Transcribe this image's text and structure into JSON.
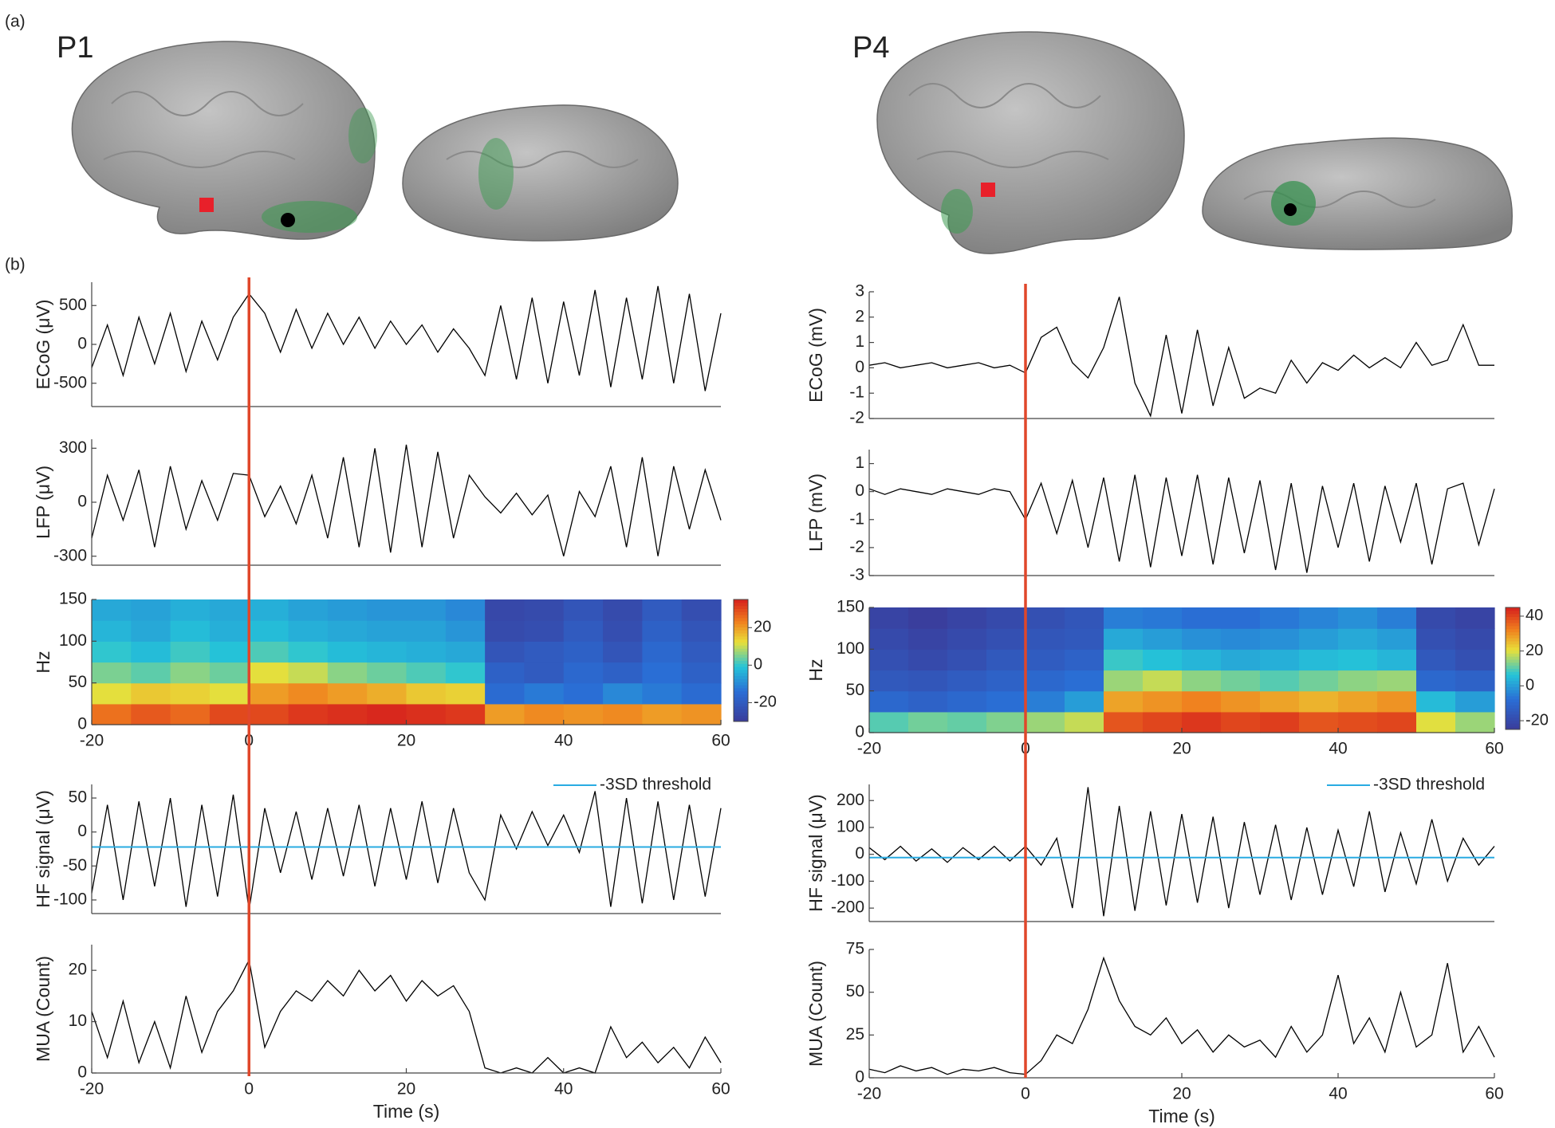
{
  "figure": {
    "panel_a": "(a)",
    "panel_b": "(b)",
    "subjects": [
      "P1",
      "P4"
    ]
  },
  "onset": {
    "x": 0,
    "color": "#e0472a"
  },
  "chart_data": [
    {
      "type": "line",
      "ylabel": "ECoG (μV)",
      "xlim": [
        -20,
        60
      ],
      "ylim": [
        -800,
        800
      ],
      "yticks": [
        -500,
        0,
        500
      ],
      "color": "#000000",
      "x": [
        -20,
        -18,
        -16,
        -14,
        -12,
        -10,
        -8,
        -6,
        -4,
        -2,
        0,
        2,
        4,
        6,
        8,
        10,
        12,
        14,
        16,
        18,
        20,
        22,
        24,
        26,
        28,
        30,
        32,
        34,
        36,
        38,
        40,
        42,
        44,
        46,
        48,
        50,
        52,
        54,
        56,
        58,
        60
      ],
      "values": [
        -300,
        250,
        -400,
        350,
        -250,
        400,
        -350,
        300,
        -200,
        350,
        650,
        400,
        -100,
        450,
        -50,
        400,
        0,
        350,
        -50,
        300,
        0,
        250,
        -100,
        200,
        -50,
        -400,
        500,
        -450,
        600,
        -500,
        550,
        -400,
        700,
        -550,
        600,
        -450,
        750,
        -500,
        650,
        -600,
        400
      ]
    },
    {
      "type": "line",
      "ylabel": "LFP (μV)",
      "xlim": [
        -20,
        60
      ],
      "ylim": [
        -350,
        350
      ],
      "yticks": [
        -300,
        0,
        300
      ],
      "color": "#000000",
      "x": [
        -20,
        -18,
        -16,
        -14,
        -12,
        -10,
        -8,
        -6,
        -4,
        -2,
        0,
        2,
        4,
        6,
        8,
        10,
        12,
        14,
        16,
        18,
        20,
        22,
        24,
        26,
        28,
        30,
        32,
        34,
        36,
        38,
        40,
        42,
        44,
        46,
        48,
        50,
        52,
        54,
        56,
        58,
        60
      ],
      "values": [
        -200,
        150,
        -100,
        180,
        -250,
        200,
        -150,
        120,
        -100,
        160,
        150,
        -80,
        90,
        -120,
        150,
        -200,
        250,
        -250,
        300,
        -280,
        320,
        -250,
        280,
        -200,
        150,
        30,
        -60,
        50,
        -70,
        40,
        -300,
        60,
        -80,
        200,
        -250,
        250,
        -300,
        200,
        -150,
        180,
        -100
      ]
    },
    {
      "type": "heatmap",
      "ylabel": "Hz",
      "xlim": [
        -20,
        60
      ],
      "xticks": [
        -20,
        0,
        20,
        40,
        60
      ],
      "ylim": [
        0,
        150
      ],
      "yticks": [
        0,
        50,
        100,
        150
      ],
      "clim": [
        -30,
        35
      ],
      "cticks": [
        -20,
        0,
        20
      ],
      "x": [
        -17.5,
        -12.5,
        -7.5,
        -2.5,
        2.5,
        7.5,
        12.5,
        17.5,
        22.5,
        27.5,
        32.5,
        37.5,
        42.5,
        47.5,
        52.5,
        57.5
      ],
      "y": [
        12.5,
        37.5,
        62.5,
        87.5,
        112.5,
        137.5
      ],
      "z": [
        [
          25,
          28,
          26,
          30,
          30,
          32,
          33,
          34,
          33,
          32,
          20,
          22,
          21,
          22,
          20,
          21
        ],
        [
          12,
          15,
          14,
          12,
          20,
          22,
          20,
          18,
          15,
          14,
          -15,
          -12,
          -14,
          -10,
          -12,
          -15
        ],
        [
          5,
          3,
          6,
          4,
          12,
          10,
          6,
          4,
          2,
          0,
          -18,
          -20,
          -16,
          -18,
          -14,
          -18
        ],
        [
          0,
          -2,
          1,
          -1,
          2,
          0,
          -2,
          -3,
          -4,
          -5,
          -22,
          -20,
          -18,
          -22,
          -16,
          -20
        ],
        [
          -3,
          -5,
          -2,
          -4,
          -2,
          -4,
          -5,
          -6,
          -6,
          -8,
          -25,
          -24,
          -20,
          -24,
          -18,
          -22
        ],
        [
          -5,
          -6,
          -4,
          -5,
          -4,
          -6,
          -7,
          -8,
          -8,
          -10,
          -26,
          -25,
          -22,
          -25,
          -20,
          -24
        ]
      ]
    },
    {
      "type": "line",
      "ylabel": "HF signal (μV)",
      "xlim": [
        -20,
        60
      ],
      "ylim": [
        -120,
        70
      ],
      "yticks": [
        -100,
        -50,
        0,
        50
      ],
      "color": "#000000",
      "threshold": {
        "name": "-3SD threshold",
        "value": -22,
        "color": "#29abe2"
      },
      "x": [
        -20,
        -18,
        -16,
        -14,
        -12,
        -10,
        -8,
        -6,
        -4,
        -2,
        0,
        2,
        4,
        6,
        8,
        10,
        12,
        14,
        16,
        18,
        20,
        22,
        24,
        26,
        28,
        30,
        32,
        34,
        36,
        38,
        40,
        42,
        44,
        46,
        48,
        50,
        52,
        54,
        56,
        58,
        60
      ],
      "values": [
        -90,
        40,
        -100,
        45,
        -80,
        50,
        -110,
        40,
        -95,
        55,
        -115,
        35,
        -60,
        30,
        -70,
        35,
        -65,
        40,
        -80,
        35,
        -70,
        45,
        -75,
        35,
        -60,
        -100,
        25,
        -25,
        30,
        -20,
        25,
        -30,
        60,
        -110,
        50,
        -105,
        45,
        -100,
        40,
        -95,
        35
      ]
    },
    {
      "type": "line",
      "ylabel": "MUA (Count)",
      "xlabel": "Time (s)",
      "xlim": [
        -20,
        60
      ],
      "xticks": [
        -20,
        0,
        20,
        40,
        60
      ],
      "ylim": [
        0,
        25
      ],
      "yticks": [
        0,
        10,
        20
      ],
      "color": "#000000",
      "x": [
        -20,
        -18,
        -16,
        -14,
        -12,
        -10,
        -8,
        -6,
        -4,
        -2,
        0,
        2,
        4,
        6,
        8,
        10,
        12,
        14,
        16,
        18,
        20,
        22,
        24,
        26,
        28,
        30,
        32,
        34,
        36,
        38,
        40,
        42,
        44,
        46,
        48,
        50,
        52,
        54,
        56,
        58,
        60
      ],
      "values": [
        12,
        3,
        14,
        2,
        10,
        1,
        15,
        4,
        12,
        16,
        22,
        5,
        12,
        16,
        14,
        18,
        15,
        20,
        16,
        19,
        14,
        18,
        15,
        17,
        12,
        1,
        0,
        1,
        0,
        3,
        0,
        1,
        0,
        9,
        3,
        6,
        2,
        5,
        1,
        7,
        2
      ]
    },
    {
      "type": "line",
      "ylabel": "ECoG (mV)",
      "xlim": [
        -20,
        60
      ],
      "ylim": [
        -2,
        3
      ],
      "yticks": [
        -2,
        -1,
        0,
        1,
        2,
        3
      ],
      "color": "#000000",
      "x": [
        -20,
        -18,
        -16,
        -14,
        -12,
        -10,
        -8,
        -6,
        -4,
        -2,
        0,
        2,
        4,
        6,
        8,
        10,
        12,
        14,
        16,
        18,
        20,
        22,
        24,
        26,
        28,
        30,
        32,
        34,
        36,
        38,
        40,
        42,
        44,
        46,
        48,
        50,
        52,
        54,
        56,
        58,
        60
      ],
      "values": [
        0.1,
        0.2,
        0,
        0.1,
        0.2,
        0,
        0.1,
        0.2,
        0,
        0.1,
        -0.2,
        1.2,
        1.6,
        0.2,
        -0.4,
        0.8,
        2.8,
        -0.6,
        -1.9,
        1.3,
        -1.8,
        1.5,
        -1.5,
        0.8,
        -1.2,
        -0.8,
        -1,
        0.3,
        -0.6,
        0.2,
        -0.1,
        0.5,
        0,
        0.4,
        0,
        1,
        0.1,
        0.3,
        1.7,
        0.1,
        0.1
      ]
    },
    {
      "type": "line",
      "ylabel": "LFP (mV)",
      "xlim": [
        -20,
        60
      ],
      "ylim": [
        -3,
        1.5
      ],
      "yticks": [
        -3,
        -2,
        -1,
        0,
        1
      ],
      "color": "#000000",
      "x": [
        -20,
        -18,
        -16,
        -14,
        -12,
        -10,
        -8,
        -6,
        -4,
        -2,
        0,
        2,
        4,
        6,
        8,
        10,
        12,
        14,
        16,
        18,
        20,
        22,
        24,
        26,
        28,
        30,
        32,
        34,
        36,
        38,
        40,
        42,
        44,
        46,
        48,
        50,
        52,
        54,
        56,
        58,
        60
      ],
      "values": [
        0.1,
        -0.1,
        0.1,
        0,
        -0.1,
        0.1,
        0,
        -0.1,
        0.1,
        0,
        -1,
        0.3,
        -1.5,
        0.4,
        -2,
        0.5,
        -2.5,
        0.6,
        -2.7,
        0.5,
        -2.3,
        0.6,
        -2.6,
        0.5,
        -2.2,
        0.4,
        -2.8,
        0.3,
        -2.9,
        0.2,
        -2,
        0.3,
        -2.5,
        0.2,
        -1.8,
        0.3,
        -2.6,
        0.1,
        0.3,
        -1.9,
        0.1
      ]
    },
    {
      "type": "heatmap",
      "ylabel": "Hz",
      "xlim": [
        -20,
        60
      ],
      "xticks": [
        -20,
        0,
        20,
        40,
        60
      ],
      "ylim": [
        0,
        150
      ],
      "yticks": [
        0,
        50,
        100,
        150
      ],
      "clim": [
        -25,
        45
      ],
      "cticks": [
        -20,
        0,
        20,
        40
      ],
      "x": [
        -17.5,
        -12.5,
        -7.5,
        -2.5,
        2.5,
        7.5,
        12.5,
        17.5,
        22.5,
        27.5,
        32.5,
        37.5,
        42.5,
        47.5,
        52.5,
        57.5
      ],
      "y": [
        12.5,
        37.5,
        62.5,
        87.5,
        112.5,
        137.5
      ],
      "z": [
        [
          10,
          12,
          11,
          13,
          15,
          18,
          38,
          40,
          42,
          40,
          41,
          38,
          39,
          40,
          20,
          15
        ],
        [
          -10,
          -12,
          -10,
          -8,
          -5,
          0,
          28,
          30,
          32,
          30,
          28,
          26,
          28,
          30,
          5,
          0
        ],
        [
          -15,
          -16,
          -14,
          -12,
          -10,
          -8,
          15,
          18,
          14,
          12,
          10,
          12,
          14,
          15,
          -10,
          -12
        ],
        [
          -18,
          -20,
          -18,
          -15,
          -14,
          -12,
          8,
          6,
          4,
          2,
          3,
          5,
          6,
          4,
          -15,
          -18
        ],
        [
          -20,
          -22,
          -20,
          -18,
          -16,
          -15,
          2,
          0,
          -2,
          -3,
          -2,
          0,
          2,
          0,
          -18,
          -20
        ],
        [
          -22,
          -24,
          -22,
          -20,
          -18,
          -16,
          -5,
          -6,
          -8,
          -8,
          -6,
          -4,
          -2,
          -5,
          -20,
          -22
        ]
      ]
    },
    {
      "type": "line",
      "ylabel": "HF signal (μV)",
      "xlim": [
        -20,
        60
      ],
      "ylim": [
        -250,
        260
      ],
      "yticks": [
        -200,
        -100,
        0,
        100,
        200
      ],
      "color": "#000000",
      "threshold": {
        "name": "-3SD threshold",
        "value": -12,
        "color": "#29abe2"
      },
      "x": [
        -20,
        -18,
        -16,
        -14,
        -12,
        -10,
        -8,
        -6,
        -4,
        -2,
        0,
        2,
        4,
        6,
        8,
        10,
        12,
        14,
        16,
        18,
        20,
        22,
        24,
        26,
        28,
        30,
        32,
        34,
        36,
        38,
        40,
        42,
        44,
        46,
        48,
        50,
        52,
        54,
        56,
        58,
        60
      ],
      "values": [
        25,
        -20,
        30,
        -25,
        20,
        -30,
        25,
        -20,
        30,
        -25,
        30,
        -40,
        60,
        -200,
        250,
        -230,
        180,
        -210,
        160,
        -190,
        150,
        -180,
        140,
        -200,
        120,
        -150,
        110,
        -170,
        100,
        -150,
        90,
        -120,
        160,
        -140,
        80,
        -110,
        130,
        -100,
        60,
        -40,
        30
      ]
    },
    {
      "type": "line",
      "ylabel": "MUA (Count)",
      "xlabel": "Time (s)",
      "xlim": [
        -20,
        60
      ],
      "xticks": [
        -20,
        0,
        20,
        40,
        60
      ],
      "ylim": [
        0,
        75
      ],
      "yticks": [
        0,
        25,
        50,
        75
      ],
      "color": "#000000",
      "x": [
        -20,
        -18,
        -16,
        -14,
        -12,
        -10,
        -8,
        -6,
        -4,
        -2,
        0,
        2,
        4,
        6,
        8,
        10,
        12,
        14,
        16,
        18,
        20,
        22,
        24,
        26,
        28,
        30,
        32,
        34,
        36,
        38,
        40,
        42,
        44,
        46,
        48,
        50,
        52,
        54,
        56,
        58,
        60
      ],
      "values": [
        5,
        3,
        7,
        4,
        6,
        2,
        5,
        4,
        6,
        3,
        2,
        10,
        25,
        20,
        40,
        70,
        45,
        30,
        25,
        35,
        20,
        28,
        15,
        25,
        18,
        22,
        12,
        30,
        15,
        25,
        60,
        20,
        35,
        15,
        50,
        18,
        25,
        67,
        15,
        30,
        12
      ]
    }
  ]
}
